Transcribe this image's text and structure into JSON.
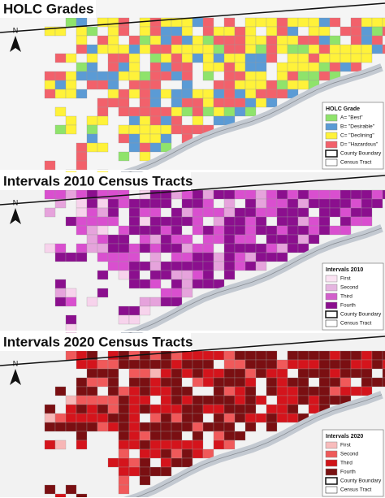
{
  "panels": [
    {
      "title": "HOLC Grades",
      "north": "N",
      "legend": {
        "title": "HOLC Grade",
        "items": [
          "A= \"Best\"",
          "B= \"Desirable\"",
          "C= \"Declining\"",
          "D= \"Hazardous\"",
          "County Boundary",
          "Census Tract"
        ]
      }
    },
    {
      "title": "Intervals 2010 Census Tracts",
      "north": "N",
      "legend": {
        "title": "Intervals 2010",
        "items": [
          "First",
          "Second",
          "Third",
          "Fourth",
          "County Boundary",
          "Census Tract"
        ]
      }
    },
    {
      "title": "Intervals 2020 Census Tracts",
      "north": "N",
      "legend": {
        "title": "Intervals 2020",
        "items": [
          "First",
          "Second",
          "Third",
          "Fourth",
          "County Boundary",
          "Census Tract"
        ]
      }
    }
  ]
}
